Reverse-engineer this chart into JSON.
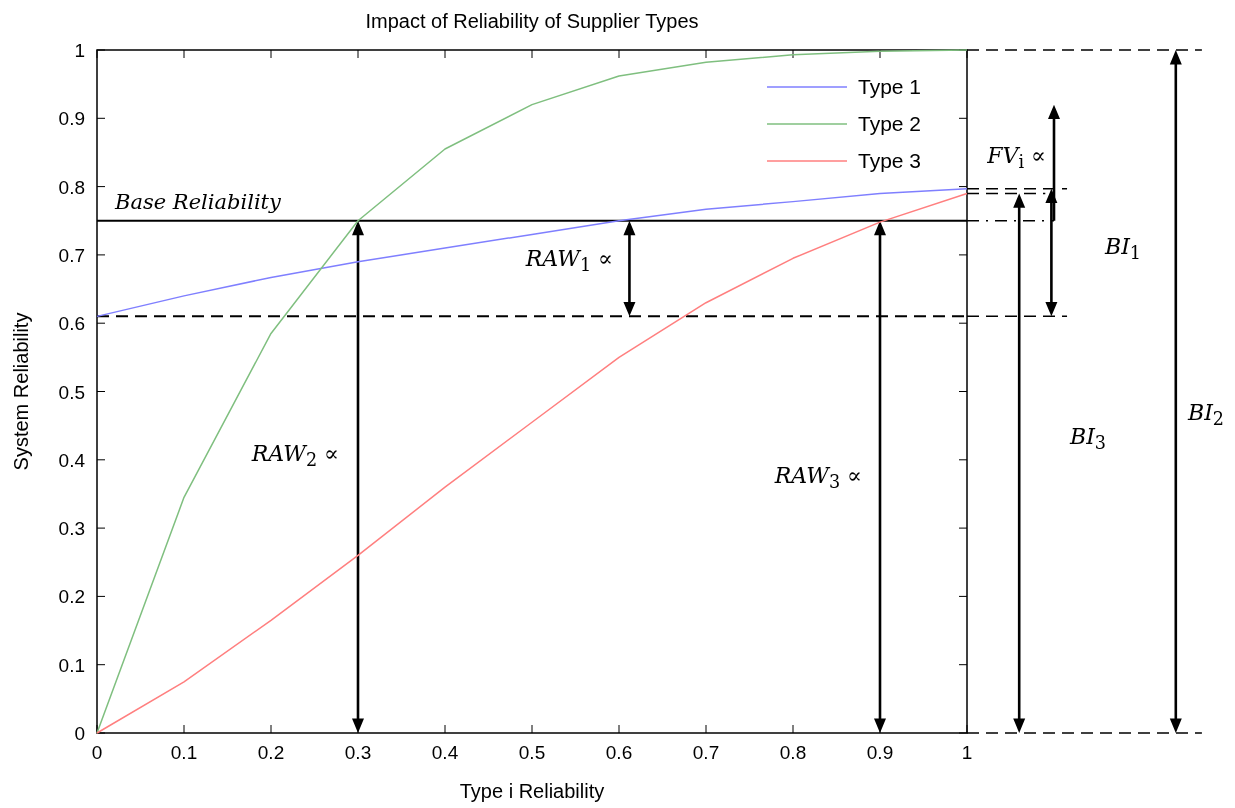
{
  "chart_data": {
    "type": "line",
    "title": "Impact of Reliability of Supplier Types",
    "xlabel": "Type i Reliability",
    "ylabel": "System Reliability",
    "x": [
      0,
      0.1,
      0.2,
      0.3,
      0.4,
      0.5,
      0.6,
      0.7,
      0.8,
      0.9,
      1
    ],
    "series": [
      {
        "name": "Type 1",
        "color": "#7f7fff",
        "values": [
          0.61,
          0.64,
          0.667,
          0.69,
          0.71,
          0.73,
          0.75,
          0.767,
          0.778,
          0.79,
          0.797
        ]
      },
      {
        "name": "Type 2",
        "color": "#7fbf7f",
        "values": [
          0,
          0.345,
          0.585,
          0.75,
          0.855,
          0.92,
          0.962,
          0.982,
          0.993,
          0.998,
          1.0
        ]
      },
      {
        "name": "Type 3",
        "color": "#ff7f7f",
        "values": [
          0,
          0.075,
          0.165,
          0.26,
          0.36,
          0.455,
          0.55,
          0.63,
          0.695,
          0.748,
          0.79
        ]
      }
    ],
    "xlim": [
      0,
      1
    ],
    "ylim": [
      0,
      1
    ],
    "xticks": [
      0,
      0.1,
      0.2,
      0.3,
      0.4,
      0.5,
      0.6,
      0.7,
      0.8,
      0.9,
      1
    ],
    "yticks": [
      0,
      0.1,
      0.2,
      0.3,
      0.4,
      0.5,
      0.6,
      0.7,
      0.8,
      0.9,
      1
    ],
    "ref_lines": [
      {
        "axis": "y",
        "value": 0.75,
        "label": "Base Reliability",
        "color": "#000000",
        "line_style": "solid"
      },
      {
        "axis": "y",
        "value": 0.61,
        "color": "#000000",
        "line_style": "dashed"
      }
    ],
    "annotations": [
      "RAW$_{1}$ ∝",
      "RAW$_{2}$ ∝",
      "RAW$_{3}$ ∝",
      "FV$_{i}$ ∝",
      "BI$_{1}$",
      "BI$_{3}$",
      "BI$_{2}$"
    ],
    "legend": "top right",
    "marker": "none",
    "line_style": "solid",
    "grid": false
  }
}
